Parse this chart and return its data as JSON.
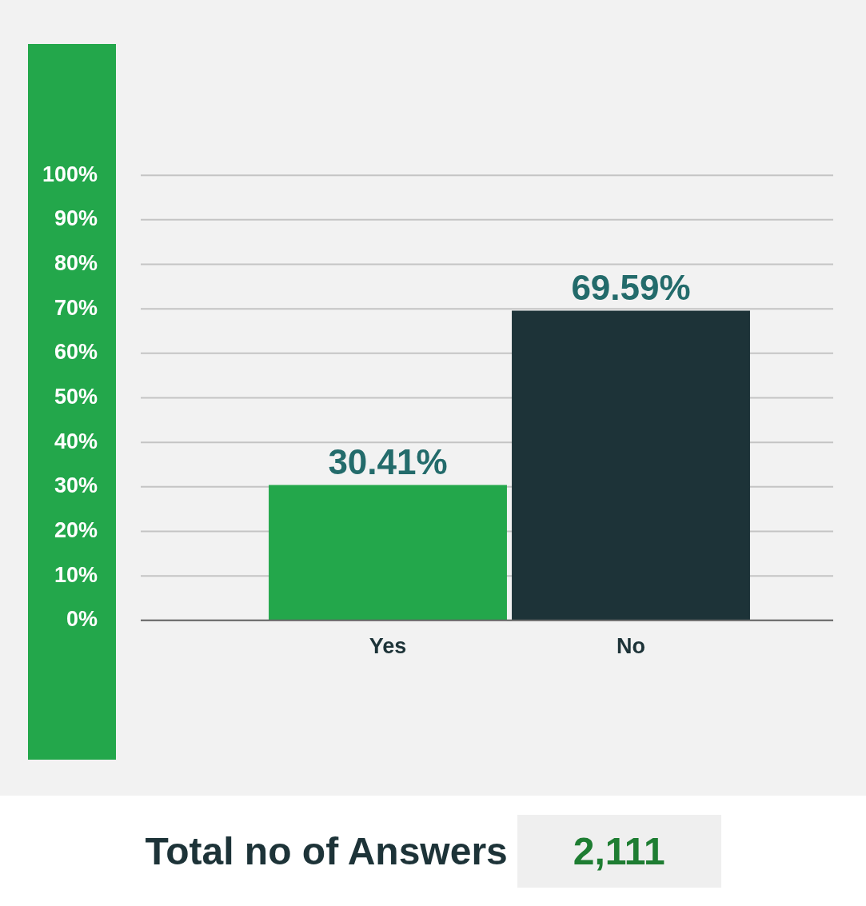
{
  "chart_data": {
    "type": "bar",
    "categories": [
      "Yes",
      "No"
    ],
    "values": [
      30.41,
      69.59
    ],
    "colors": [
      "#23a74b",
      "#1d3338"
    ],
    "value_labels": [
      "30.41%",
      "69.59%"
    ],
    "ylim": [
      0,
      100
    ],
    "yticks": [
      {
        "value": 0,
        "label": "0%"
      },
      {
        "value": 10,
        "label": "10%"
      },
      {
        "value": 20,
        "label": "20%"
      },
      {
        "value": 30,
        "label": "30%"
      },
      {
        "value": 40,
        "label": "40%"
      },
      {
        "value": 50,
        "label": "50%"
      },
      {
        "value": 60,
        "label": "60%"
      },
      {
        "value": 70,
        "label": "70%"
      },
      {
        "value": 80,
        "label": "80%"
      },
      {
        "value": 90,
        "label": "90%"
      },
      {
        "value": 100,
        "label": "100%"
      }
    ],
    "grid": "y",
    "legend": false,
    "annotations": [
      "Total no of Answers",
      "2,111"
    ]
  }
}
